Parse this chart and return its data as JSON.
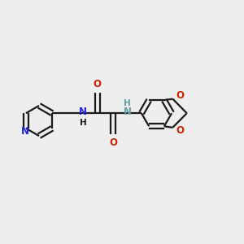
{
  "bg_color": "#eeeeee",
  "bond_color": "#1a1a1a",
  "n_color": "#2020dd",
  "o_color": "#cc2200",
  "nh_color": "#5f9ea0",
  "fig_size": [
    3.0,
    3.0
  ],
  "dpi": 100,
  "lw": 1.6,
  "font_size": 8.5,
  "xlim": [
    0.0,
    10.0
  ],
  "ylim": [
    -1.5,
    5.0
  ]
}
